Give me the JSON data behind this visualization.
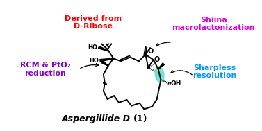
{
  "title_bold": "Aspergillide D ",
  "title_normal": "(1)",
  "label_derived": "Derived from\nD-Ribose",
  "label_rcm": "RCM & PtO₂\nreduction",
  "label_shiina": "Shiina\nmacrolactonization",
  "label_sharpless": "Sharpless\nresolution",
  "color_derived": "#ff0000",
  "color_rcm": "#8800cc",
  "color_shiina": "#dd00dd",
  "color_sharpless": "#0099ff",
  "color_structure": "#000000",
  "color_highlight": "#44ddcc",
  "bg_color": "#ffffff",
  "fig_width": 3.77,
  "fig_height": 1.89
}
